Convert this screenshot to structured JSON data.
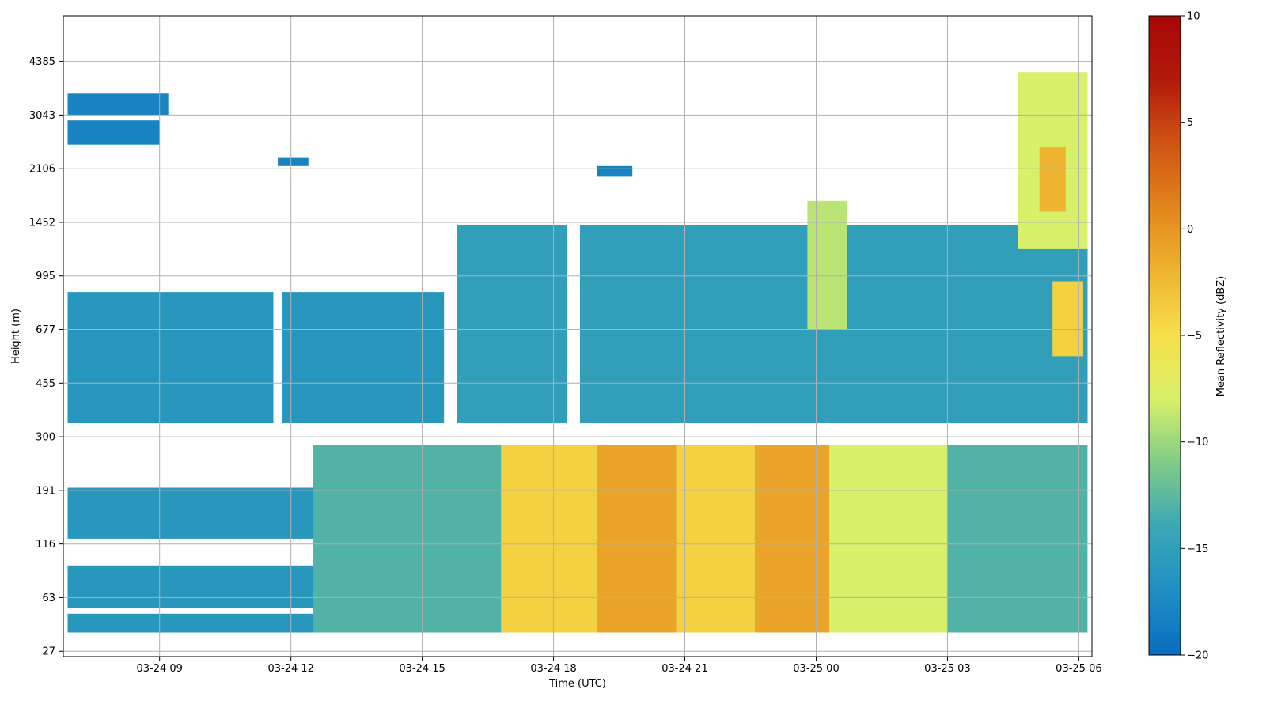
{
  "chart_data": {
    "type": "heatmap",
    "title": "",
    "xlabel": "Time (UTC)",
    "ylabel": "Height (m)",
    "grid": true,
    "x_ticks": [
      "03-24 09",
      "03-24 12",
      "03-24 15",
      "03-24 18",
      "03-24 21",
      "03-25 00",
      "03-25 03",
      "03-25 06"
    ],
    "x_tick_hours": [
      9,
      12,
      15,
      18,
      21,
      24,
      27,
      30
    ],
    "xlim_hours": [
      6.8,
      30.3
    ],
    "y_ticks": [
      "27",
      "63",
      "116",
      "191",
      "300",
      "455",
      "677",
      "995",
      "1452",
      "2106",
      "3043",
      "4385"
    ],
    "colorbar": {
      "label": "Mean Reflectivity (dBZ)",
      "ticks": [
        "10",
        "5",
        "0",
        "−5",
        "−10",
        "−15",
        "−20"
      ],
      "min": -20,
      "max": 10,
      "colormap": [
        "#0a6cc0",
        "#1f8fc2",
        "#3aa7b6",
        "#7fcc86",
        "#d8f06a",
        "#f6e04a",
        "#eeb430",
        "#e2851c",
        "#cf5414",
        "#b11a0a",
        "#a80606"
      ]
    },
    "regions": [
      {
        "t0": 6.9,
        "t1": 9.2,
        "y0": 10.4,
        "y1": 10.0,
        "v": -18
      },
      {
        "t0": 6.9,
        "t1": 9.0,
        "y0": 9.9,
        "y1": 9.45,
        "v": -18
      },
      {
        "t0": 19.0,
        "t1": 19.8,
        "y0": 9.05,
        "y1": 8.85,
        "v": -18
      },
      {
        "t0": 11.7,
        "t1": 12.4,
        "y0": 9.2,
        "y1": 9.05,
        "v": -18
      },
      {
        "t0": 6.9,
        "t1": 11.6,
        "y0": 6.7,
        "y1": 4.25,
        "v": -16
      },
      {
        "t0": 11.8,
        "t1": 15.5,
        "y0": 6.7,
        "y1": 4.25,
        "v": -16
      },
      {
        "t0": 15.8,
        "t1": 18.3,
        "y0": 7.95,
        "y1": 4.25,
        "v": -15
      },
      {
        "t0": 18.6,
        "t1": 30.2,
        "y0": 7.95,
        "y1": 4.25,
        "v": -15
      },
      {
        "t0": 12.5,
        "t1": 30.2,
        "y0": 3.85,
        "y1": 0.35,
        "v": -13
      },
      {
        "t0": 6.9,
        "t1": 12.5,
        "y0": 3.05,
        "y1": 2.1,
        "v": -16
      },
      {
        "t0": 6.9,
        "t1": 12.5,
        "y0": 1.6,
        "y1": 0.8,
        "v": -16
      },
      {
        "t0": 6.9,
        "t1": 12.5,
        "y0": 0.7,
        "y1": 0.35,
        "v": -16
      },
      {
        "t0": 16.8,
        "t1": 23.0,
        "y0": 3.85,
        "y1": 0.35,
        "v": -4
      },
      {
        "t0": 19.0,
        "t1": 20.8,
        "y0": 3.85,
        "y1": 0.35,
        "v": -1
      },
      {
        "t0": 22.6,
        "t1": 24.3,
        "y0": 3.85,
        "y1": 0.35,
        "v": -1
      },
      {
        "t0": 24.3,
        "t1": 27.0,
        "y0": 3.85,
        "y1": 0.35,
        "v": -8
      },
      {
        "t0": 28.6,
        "t1": 30.2,
        "y0": 10.8,
        "y1": 7.5,
        "v": -8
      },
      {
        "t0": 29.1,
        "t1": 29.7,
        "y0": 9.4,
        "y1": 8.2,
        "v": -2
      },
      {
        "t0": 23.8,
        "t1": 24.7,
        "y0": 8.4,
        "y1": 6.0,
        "v": -9
      },
      {
        "t0": 29.4,
        "t1": 30.1,
        "y0": 6.9,
        "y1": 5.5,
        "v": -4
      }
    ]
  }
}
